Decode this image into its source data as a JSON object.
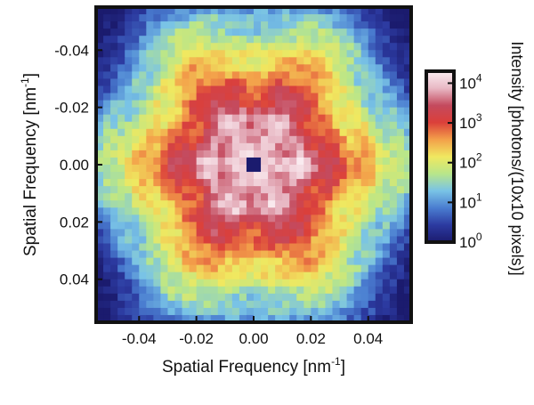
{
  "chart_data": {
    "type": "heatmap",
    "title": "",
    "xlabel": "Spatial Frequency [nm",
    "xlabel_sup": "-1",
    "xlabel_tail": "]",
    "ylabel": "Spatial Frequency [nm",
    "ylabel_sup": "-1",
    "ylabel_tail": "]",
    "xlim": [
      -0.055,
      0.055
    ],
    "ylim": [
      -0.055,
      0.055
    ],
    "y_inverted": true,
    "x_ticks": [
      -0.04,
      -0.02,
      0.0,
      0.02,
      0.04
    ],
    "x_tick_labels": [
      "-0.04",
      "-0.02",
      "0.00",
      "0.02",
      "0.04"
    ],
    "y_ticks": [
      -0.04,
      -0.02,
      0.0,
      0.02,
      0.04
    ],
    "y_tick_labels": [
      "-0.04",
      "-0.02",
      "0.00",
      "0.02",
      "0.04"
    ],
    "grid_size": 44,
    "pattern": {
      "peak_intensity": 20000,
      "background_intensity": 1,
      "beamstop_halfwidth": 0.0035,
      "ring_radii": [
        0.017,
        0.028,
        0.04,
        0.052
      ],
      "symmetry_fold": 6
    },
    "colorbar": {
      "label": "Intensity [photons/(10x10 pixels)]",
      "scale": "log",
      "range": [
        1,
        20000
      ],
      "ticks": [
        1,
        10,
        100,
        1000,
        10000
      ],
      "tick_labels": [
        {
          "base": "10",
          "exp": "0"
        },
        {
          "base": "10",
          "exp": "1"
        },
        {
          "base": "10",
          "exp": "2"
        },
        {
          "base": "10",
          "exp": "3"
        },
        {
          "base": "10",
          "exp": "4"
        }
      ],
      "colors": [
        "#1b1b6e",
        "#2c3aa0",
        "#4a7dd0",
        "#79c3e6",
        "#b8e68a",
        "#f0e860",
        "#f3a04a",
        "#db3f3a",
        "#c44a5e",
        "#e8b8c4",
        "#fbeef2"
      ]
    }
  }
}
